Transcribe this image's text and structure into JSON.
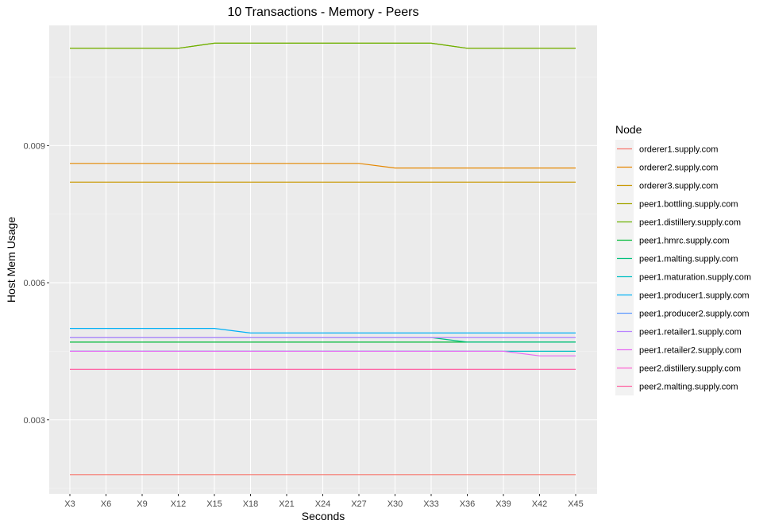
{
  "chart_data": {
    "type": "line",
    "title": "10 Transactions - Memory - Peers",
    "xlabel": "Seconds",
    "ylabel": "Host Mem Usage",
    "legend_title": "Node",
    "legend_position": "right",
    "grid": true,
    "x": [
      "X3",
      "X6",
      "X9",
      "X12",
      "X15",
      "X18",
      "X21",
      "X24",
      "X27",
      "X30",
      "X33",
      "X36",
      "X39",
      "X42",
      "X45"
    ],
    "ylim": [
      0.00138,
      0.01163
    ],
    "yticks": [
      0.003,
      0.006,
      0.009
    ],
    "ytick_labels": [
      "0.003",
      "0.006",
      "0.009"
    ],
    "series": [
      {
        "name": "orderer1.supply.com",
        "color": "#F8766D",
        "values": [
          0.0018,
          0.0018,
          0.0018,
          0.0018,
          0.0018,
          0.0018,
          0.0018,
          0.0018,
          0.0018,
          0.0018,
          0.0018,
          0.0018,
          0.0018,
          0.0018,
          0.0018
        ]
      },
      {
        "name": "orderer2.supply.com",
        "color": "#E58700",
        "values": [
          0.00861,
          0.00861,
          0.00861,
          0.00861,
          0.00861,
          0.00861,
          0.00861,
          0.00861,
          0.00861,
          0.00851,
          0.00851,
          0.00851,
          0.00851,
          0.00851,
          0.00851
        ]
      },
      {
        "name": "orderer3.supply.com",
        "color": "#C99800",
        "values": [
          0.0082,
          0.0082,
          0.0082,
          0.0082,
          0.0082,
          0.0082,
          0.0082,
          0.0082,
          0.0082,
          0.0082,
          0.0082,
          0.0082,
          0.0082,
          0.0082,
          0.0082
        ]
      },
      {
        "name": "peer1.bottling.supply.com",
        "color": "#A3A500",
        "values": [
          0.01113,
          0.01113,
          0.01113,
          0.01113,
          0.01124,
          0.01124,
          0.01124,
          0.01124,
          0.01124,
          0.01124,
          0.01124,
          0.01113,
          0.01113,
          0.01113,
          0.01113
        ]
      },
      {
        "name": "peer1.distillery.supply.com",
        "color": "#6BB100",
        "values": [
          0.01113,
          0.01113,
          0.01113,
          0.01113,
          0.01124,
          0.01124,
          0.01124,
          0.01124,
          0.01124,
          0.01124,
          0.01124,
          0.01113,
          0.01113,
          0.01113,
          0.01113
        ]
      },
      {
        "name": "peer1.hmrc.supply.com",
        "color": "#00BA38",
        "values": [
          0.0047,
          0.0047,
          0.0047,
          0.0047,
          0.0047,
          0.0047,
          0.0047,
          0.0047,
          0.0047,
          0.0047,
          0.0047,
          0.0047,
          0.0047,
          0.0047,
          0.0047
        ]
      },
      {
        "name": "peer1.malting.supply.com",
        "color": "#00BF7D",
        "values": [
          0.0048,
          0.0048,
          0.0048,
          0.0048,
          0.0048,
          0.0048,
          0.0048,
          0.0048,
          0.0048,
          0.0048,
          0.0048,
          0.0047,
          0.0047,
          0.0047,
          0.0047
        ]
      },
      {
        "name": "peer1.maturation.supply.com",
        "color": "#00BFC4",
        "values": [
          0.0045,
          0.0045,
          0.0045,
          0.0045,
          0.0045,
          0.0045,
          0.0045,
          0.0045,
          0.0045,
          0.0045,
          0.0045,
          0.0045,
          0.0045,
          0.0045,
          0.0045
        ]
      },
      {
        "name": "peer1.producer1.supply.com",
        "color": "#00B0F6",
        "values": [
          0.005,
          0.005,
          0.005,
          0.005,
          0.005,
          0.0049,
          0.0049,
          0.0049,
          0.0049,
          0.0049,
          0.0049,
          0.0049,
          0.0049,
          0.0049,
          0.0049
        ]
      },
      {
        "name": "peer1.producer2.supply.com",
        "color": "#619CFF",
        "values": [
          0.0048,
          0.0048,
          0.0048,
          0.0048,
          0.0048,
          0.0048,
          0.0048,
          0.0048,
          0.0048,
          0.0048,
          0.0048,
          0.0048,
          0.0048,
          0.0048,
          0.0048
        ]
      },
      {
        "name": "peer1.retailer1.supply.com",
        "color": "#B983FF",
        "values": [
          0.0048,
          0.0048,
          0.0048,
          0.0048,
          0.0048,
          0.0048,
          0.0048,
          0.0048,
          0.0048,
          0.0048,
          0.0048,
          0.0048,
          0.0048,
          0.0048,
          0.0048
        ]
      },
      {
        "name": "peer1.retailer2.supply.com",
        "color": "#E76BF3",
        "values": [
          0.0045,
          0.0045,
          0.0045,
          0.0045,
          0.0045,
          0.0045,
          0.0045,
          0.0045,
          0.0045,
          0.0045,
          0.0045,
          0.0045,
          0.0045,
          0.0044,
          0.0044
        ]
      },
      {
        "name": "peer2.distillery.supply.com",
        "color": "#FD61D1",
        "values": [
          0.0041,
          0.0041,
          0.0041,
          0.0041,
          0.0041,
          0.0041,
          0.0041,
          0.0041,
          0.0041,
          0.0041,
          0.0041,
          0.0041,
          0.0041,
          0.0041,
          0.0041
        ]
      },
      {
        "name": "peer2.malting.supply.com",
        "color": "#FF67A4",
        "values": [
          0.0041,
          0.0041,
          0.0041,
          0.0041,
          0.0041,
          0.0041,
          0.0041,
          0.0041,
          0.0041,
          0.0041,
          0.0041,
          0.0041,
          0.0041,
          0.0041,
          0.0041
        ]
      }
    ]
  }
}
